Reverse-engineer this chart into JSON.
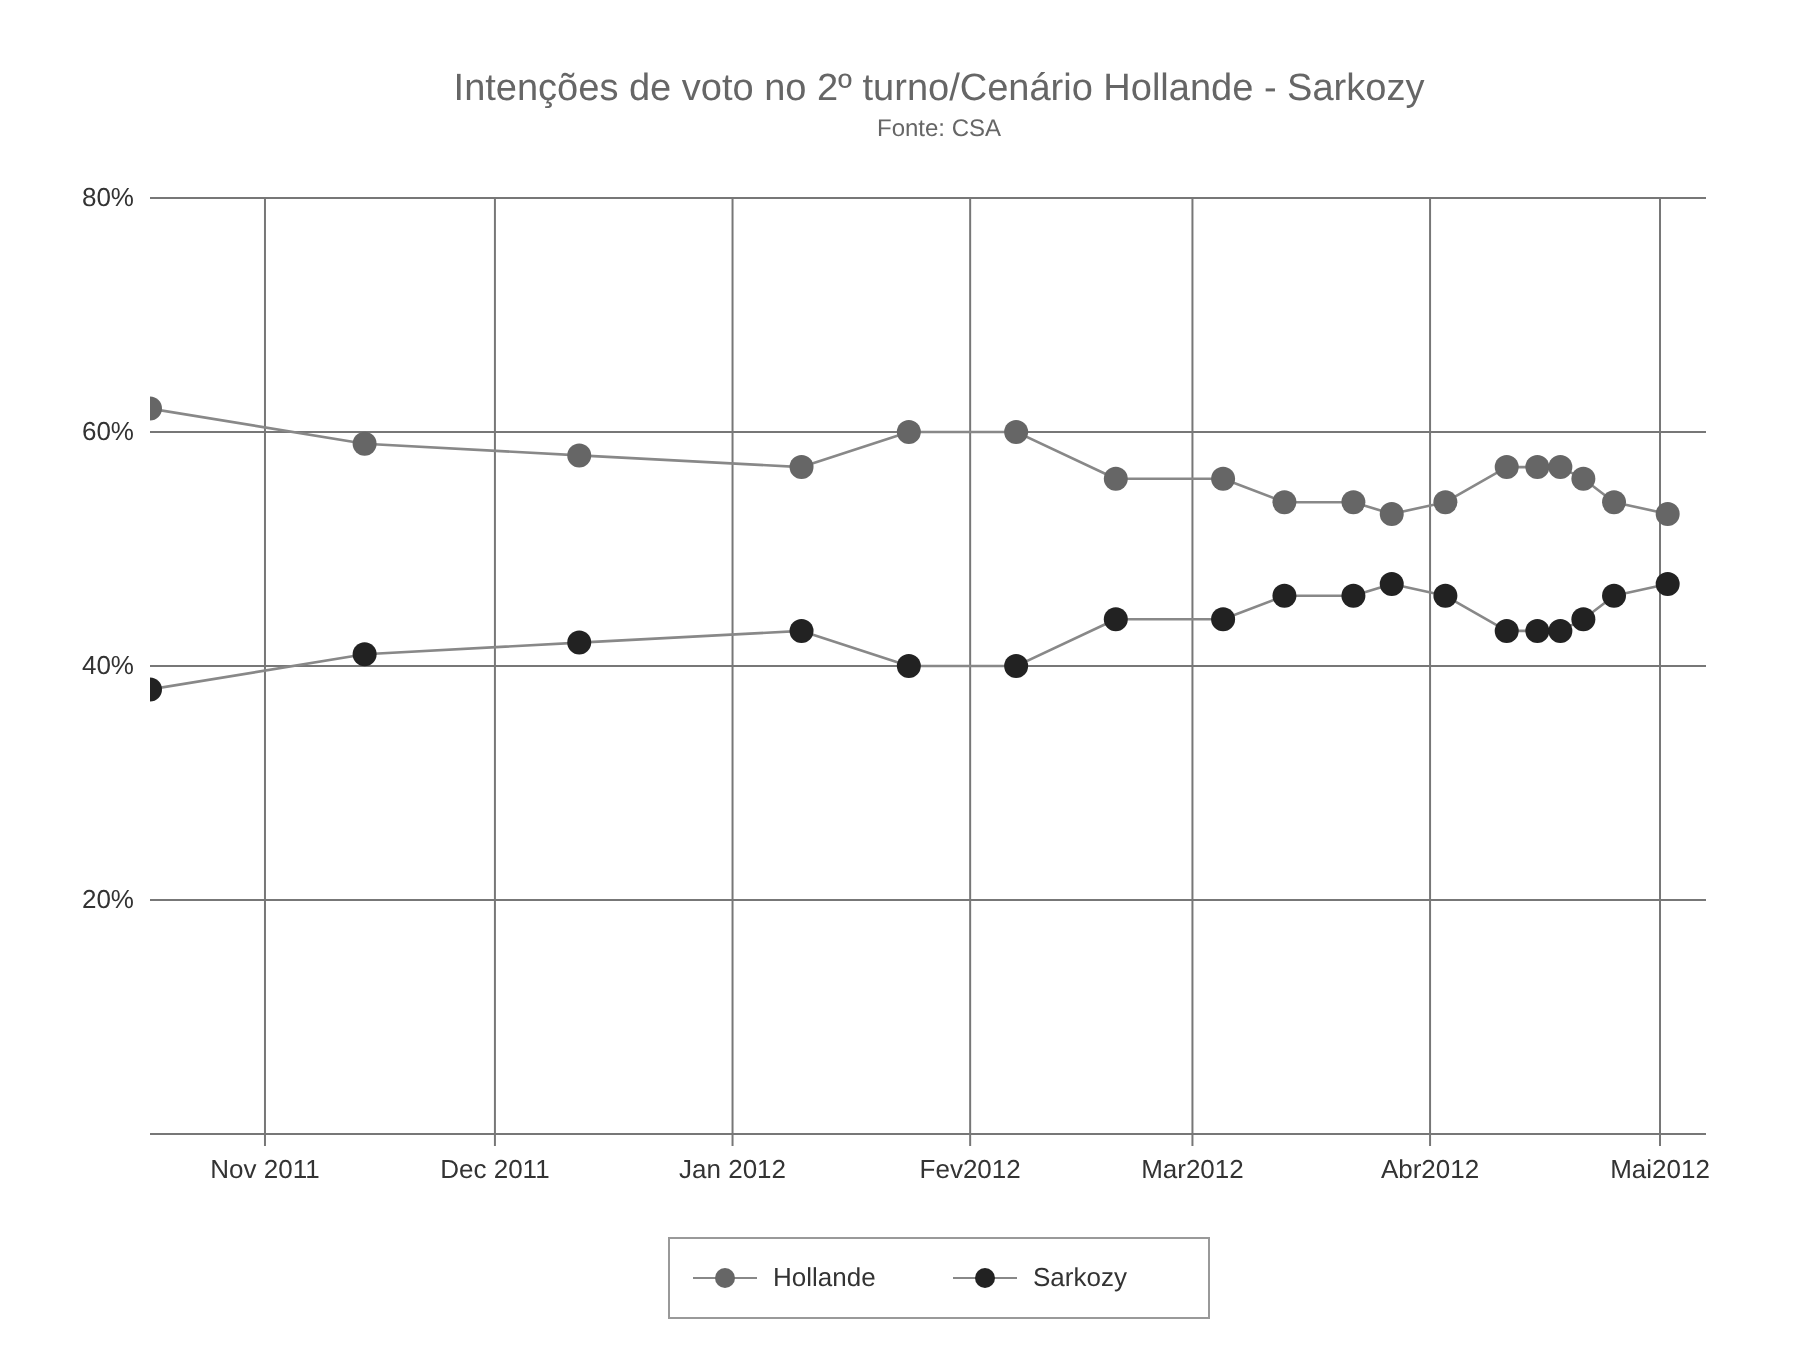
{
  "chart_data": {
    "type": "line",
    "title": "Intenções de voto no 2º turno/Cenário Hollande - Sarkozy",
    "subtitle": "Fonte: CSA",
    "x": [
      "2011-10-17",
      "2011-11-14",
      "2011-12-12",
      "2012-01-10",
      "2012-01-24",
      "2012-02-07",
      "2012-02-20",
      "2012-03-05",
      "2012-03-13",
      "2012-03-22",
      "2012-03-27",
      "2012-04-03",
      "2012-04-11",
      "2012-04-15",
      "2012-04-18",
      "2012-04-21",
      "2012-04-25",
      "2012-05-02"
    ],
    "series": [
      {
        "name": "Hollande",
        "color": "#666666",
        "values": [
          62,
          59,
          58,
          57,
          60,
          60,
          56,
          56,
          54,
          54,
          53,
          54,
          57,
          57,
          57,
          56,
          54,
          53
        ]
      },
      {
        "name": "Sarkozy",
        "color": "#222222",
        "values": [
          38,
          41,
          42,
          43,
          40,
          40,
          44,
          44,
          46,
          46,
          47,
          46,
          43,
          43,
          43,
          44,
          46,
          47
        ]
      }
    ],
    "xlim": [
      "2011-10-17",
      "2012-05-07"
    ],
    "xticks": [
      {
        "value": "2011-11-01",
        "label": "Nov 2011"
      },
      {
        "value": "2011-12-01",
        "label": "Dec 2011"
      },
      {
        "value": "2012-01-01",
        "label": "Jan 2012"
      },
      {
        "value": "2012-02-01",
        "label": "Fev2012"
      },
      {
        "value": "2012-03-01",
        "label": "Mar2012"
      },
      {
        "value": "2012-04-01",
        "label": "Abr2012"
      },
      {
        "value": "2012-05-01",
        "label": "Mai2012"
      }
    ],
    "ylim": [
      0,
      80
    ],
    "yticks": [
      {
        "value": 0,
        "label": null
      },
      {
        "value": 20,
        "label": "20%"
      },
      {
        "value": 40,
        "label": "40%"
      },
      {
        "value": 60,
        "label": "60%"
      },
      {
        "value": 80,
        "label": "80%"
      }
    ],
    "grid": true,
    "legend": "bottom",
    "marker": "circle",
    "line_style": "solid"
  }
}
